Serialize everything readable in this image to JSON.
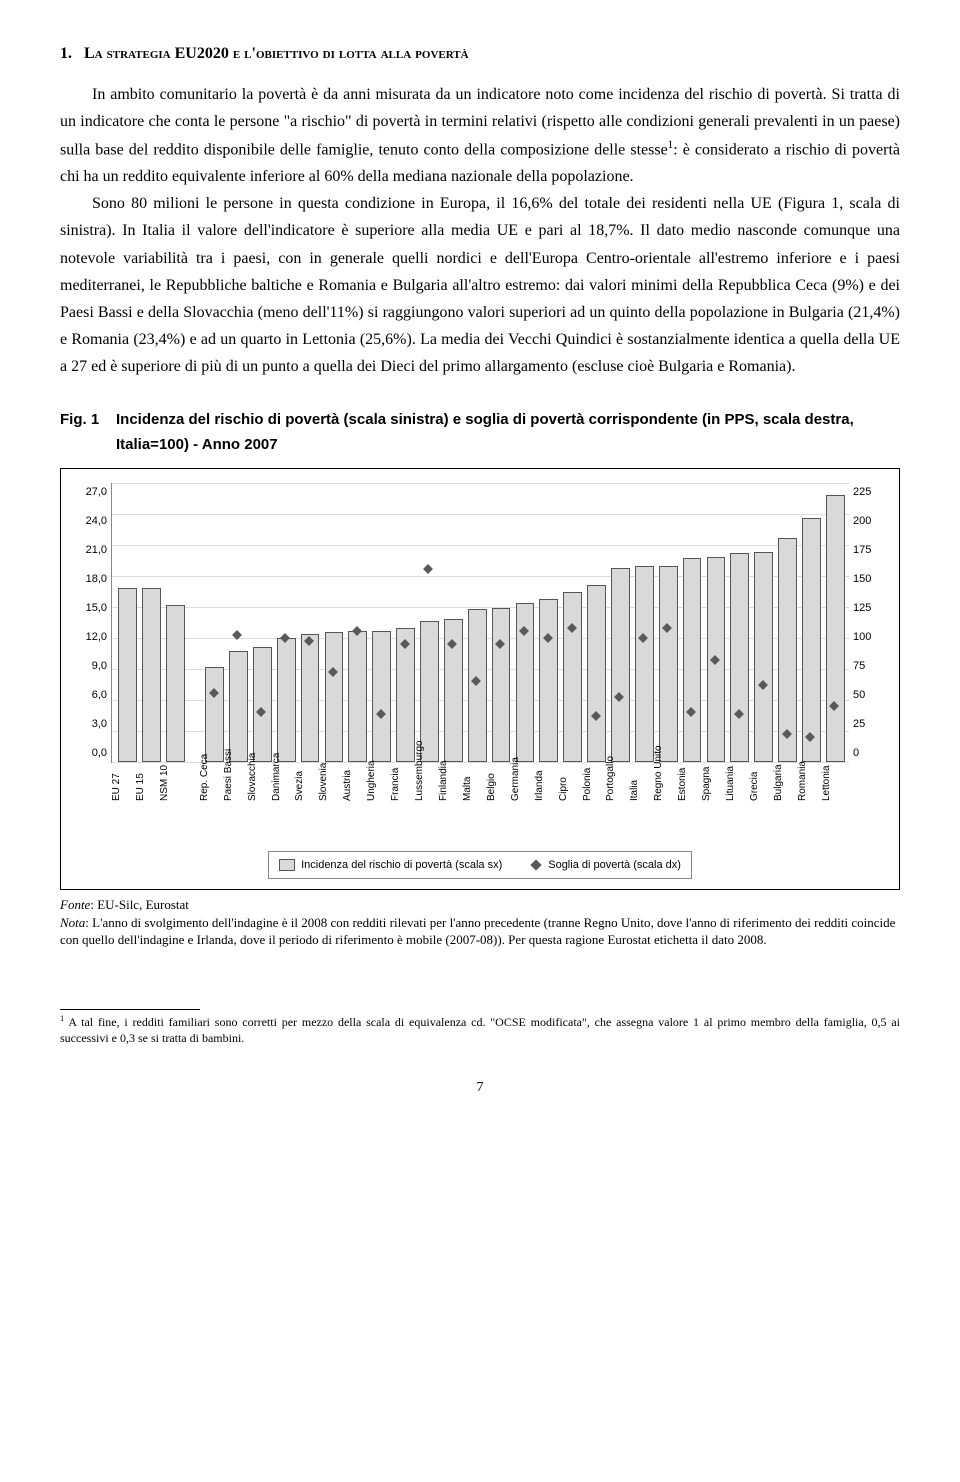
{
  "heading_num": "1.",
  "heading_text": "La strategia EU2020 e l'obiettivo di lotta alla povertà",
  "para1": "In ambito comunitario la povertà è da anni misurata da un indicatore noto come incidenza del rischio di povertà. Si tratta di un indicatore che conta le persone \"a rischio\" di povertà in termini relativi (rispetto alle condizioni generali prevalenti in un paese) sulla base del reddito disponibile delle famiglie, tenuto conto della composizione delle stesse",
  "para1_after_sup": ": è considerato a rischio di povertà chi ha un reddito equivalente inferiore al 60% della mediana nazionale della popolazione.",
  "para2": "Sono 80 milioni le persone in questa condizione in Europa, il 16,6% del totale dei residenti nella UE (Figura 1, scala di sinistra). In Italia il valore dell'indicatore è superiore alla media UE e pari al 18,7%. Il dato medio nasconde comunque una notevole variabilità tra i paesi, con in generale quelli nordici e dell'Europa Centro-orientale all'estremo inferiore e i paesi mediterranei, le Repubbliche baltiche e Romania e Bulgaria all'altro estremo: dai valori minimi della Repubblica Ceca (9%) e dei Paesi Bassi e della Slovacchia (meno dell'11%) si raggiungono valori superiori ad un quinto della popolazione in Bulgaria (21,4%) e Romania (23,4%) e ad un quarto in Lettonia (25,6%). La media dei Vecchi Quindici è sostanzialmente identica a quella della UE a 27 ed è superiore di più di un punto a quella dei Dieci del primo allargamento (escluse cioè Bulgaria e Romania).",
  "fig_label": "Fig. 1",
  "fig_caption": "Incidenza del rischio di povertà (scala sinistra) e soglia di povertà corrispondente (in PPS, scala destra, Italia=100) - Anno 2007",
  "chart": {
    "type": "bar+scatter",
    "background_color": "#ffffff",
    "grid_color": "#dddddd",
    "bar_fill": "#d9d9d9",
    "bar_border": "#555555",
    "marker_color": "#595959",
    "y_left": {
      "max": 27,
      "ticks": [
        "27,0",
        "24,0",
        "21,0",
        "18,0",
        "15,0",
        "12,0",
        "9,0",
        "6,0",
        "3,0",
        "0,0"
      ]
    },
    "y_right": {
      "max": 225,
      "ticks": [
        "225",
        "200",
        "175",
        "150",
        "125",
        "100",
        "75",
        "50",
        "25",
        "0"
      ]
    },
    "legend_bar": "Incidenza del rischio di povertà (scala sx)",
    "legend_marker": "Soglia di povertà (scala dx)",
    "groups": [
      {
        "items": [
          {
            "label": "EU 27",
            "bar": 16.6
          },
          {
            "label": "EU 15",
            "bar": 16.6
          },
          {
            "label": "NSM 10",
            "bar": 15.0
          }
        ]
      },
      {
        "items": [
          {
            "label": "Rep. Ceca",
            "bar": 9.0,
            "mk": 55
          },
          {
            "label": "Paesi Bassi",
            "bar": 10.5,
            "mk": 102
          },
          {
            "label": "Slovacchia",
            "bar": 10.9,
            "mk": 40
          },
          {
            "label": "Danimarca",
            "bar": 11.8,
            "mk": 100
          },
          {
            "label": "Svezia",
            "bar": 12.2,
            "mk": 97
          },
          {
            "label": "Slovenia",
            "bar": 12.3,
            "mk": 72
          },
          {
            "label": "Austria",
            "bar": 12.4,
            "mk": 105
          },
          {
            "label": "Ungheria",
            "bar": 12.4,
            "mk": 38
          },
          {
            "label": "Francia",
            "bar": 12.7,
            "mk": 95
          },
          {
            "label": "Lussemburgo",
            "bar": 13.4,
            "mk": 155
          },
          {
            "label": "Finlandia",
            "bar": 13.6,
            "mk": 95
          },
          {
            "label": "Malta",
            "bar": 14.6,
            "mk": 65
          },
          {
            "label": "Belgio",
            "bar": 14.7,
            "mk": 95
          },
          {
            "label": "Germania",
            "bar": 15.2,
            "mk": 105
          },
          {
            "label": "Irlanda",
            "bar": 15.5,
            "mk": 100
          },
          {
            "label": "Cipro",
            "bar": 16.2,
            "mk": 108
          },
          {
            "label": "Polonia",
            "bar": 16.9,
            "mk": 37
          },
          {
            "label": "Portogallo",
            "bar": 18.5,
            "mk": 52
          },
          {
            "label": "Italia",
            "bar": 18.7,
            "mk": 100
          },
          {
            "label": "Regno Unito",
            "bar": 18.7,
            "mk": 108
          },
          {
            "label": "Estonia",
            "bar": 19.5,
            "mk": 40
          },
          {
            "label": "Spagna",
            "bar": 19.6,
            "mk": 82
          },
          {
            "label": "Lituania",
            "bar": 20.0,
            "mk": 38
          },
          {
            "label": "Grecia",
            "bar": 20.1,
            "mk": 62
          },
          {
            "label": "Bulgaria",
            "bar": 21.4,
            "mk": 22
          },
          {
            "label": "Romania",
            "bar": 23.4,
            "mk": 20
          },
          {
            "label": "Lettonia",
            "bar": 25.6,
            "mk": 45
          }
        ]
      }
    ]
  },
  "fonte_label": "Fonte",
  "fonte_value": ": EU-Silc, Eurostat",
  "nota_label": "Nota",
  "nota_text": ": L'anno di svolgimento dell'indagine è il 2008 con redditi rilevati per l'anno precedente (tranne Regno Unito, dove l'anno di riferimento dei redditi coincide con quello dell'indagine e Irlanda, dove il periodo di riferimento è mobile (2007-08)). Per questa ragione Eurostat etichetta il dato 2008.",
  "footnote_num": "1",
  "footnote_text": " A tal fine, i redditi familiari sono corretti per mezzo della scala di equivalenza cd. \"OCSE modificata\", che assegna valore 1 al primo membro della famiglia, 0,5 ai successivi e 0,3 se si tratta di bambini.",
  "page_number": "7"
}
